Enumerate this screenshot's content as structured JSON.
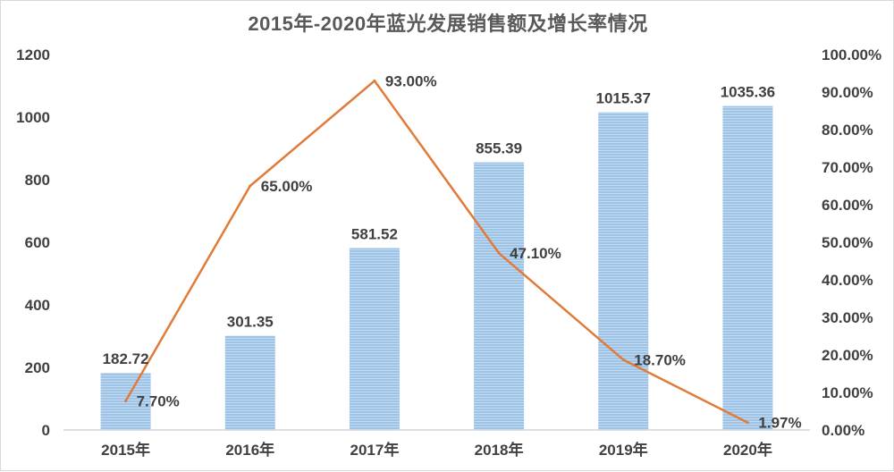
{
  "chart_data": {
    "type": "bar",
    "title": "2015年-2020年蓝光发展销售额及增长率情况",
    "categories": [
      "2015年",
      "2016年",
      "2017年",
      "2018年",
      "2019年",
      "2020年"
    ],
    "series": [
      {
        "type": "bar",
        "values": [
          182.72,
          301.35,
          581.52,
          855.39,
          1015.37,
          1035.36
        ],
        "labels": [
          "182.72",
          "301.35",
          "581.52",
          "855.39",
          "1015.37",
          "1035.36"
        ],
        "color": "#9dc3e6",
        "axis": "left"
      },
      {
        "type": "line",
        "values": [
          7.7,
          65.0,
          93.0,
          47.1,
          18.7,
          1.97
        ],
        "labels": [
          "7.70%",
          "65.00%",
          "93.00%",
          "47.10%",
          "18.70%",
          "1.97%"
        ],
        "color": "#e07b39",
        "axis": "right"
      }
    ],
    "y_left": {
      "min": 0,
      "max": 1200,
      "ticks": [
        "0",
        "200",
        "400",
        "600",
        "800",
        "1000",
        "1200"
      ]
    },
    "y_right": {
      "min": 0,
      "max": 100,
      "ticks": [
        "0.00%",
        "10.00%",
        "20.00%",
        "30.00%",
        "40.00%",
        "50.00%",
        "60.00%",
        "70.00%",
        "80.00%",
        "90.00%",
        "100.00%"
      ]
    },
    "xlabel": "",
    "ylabel": "",
    "grid": false,
    "legend": "none"
  }
}
